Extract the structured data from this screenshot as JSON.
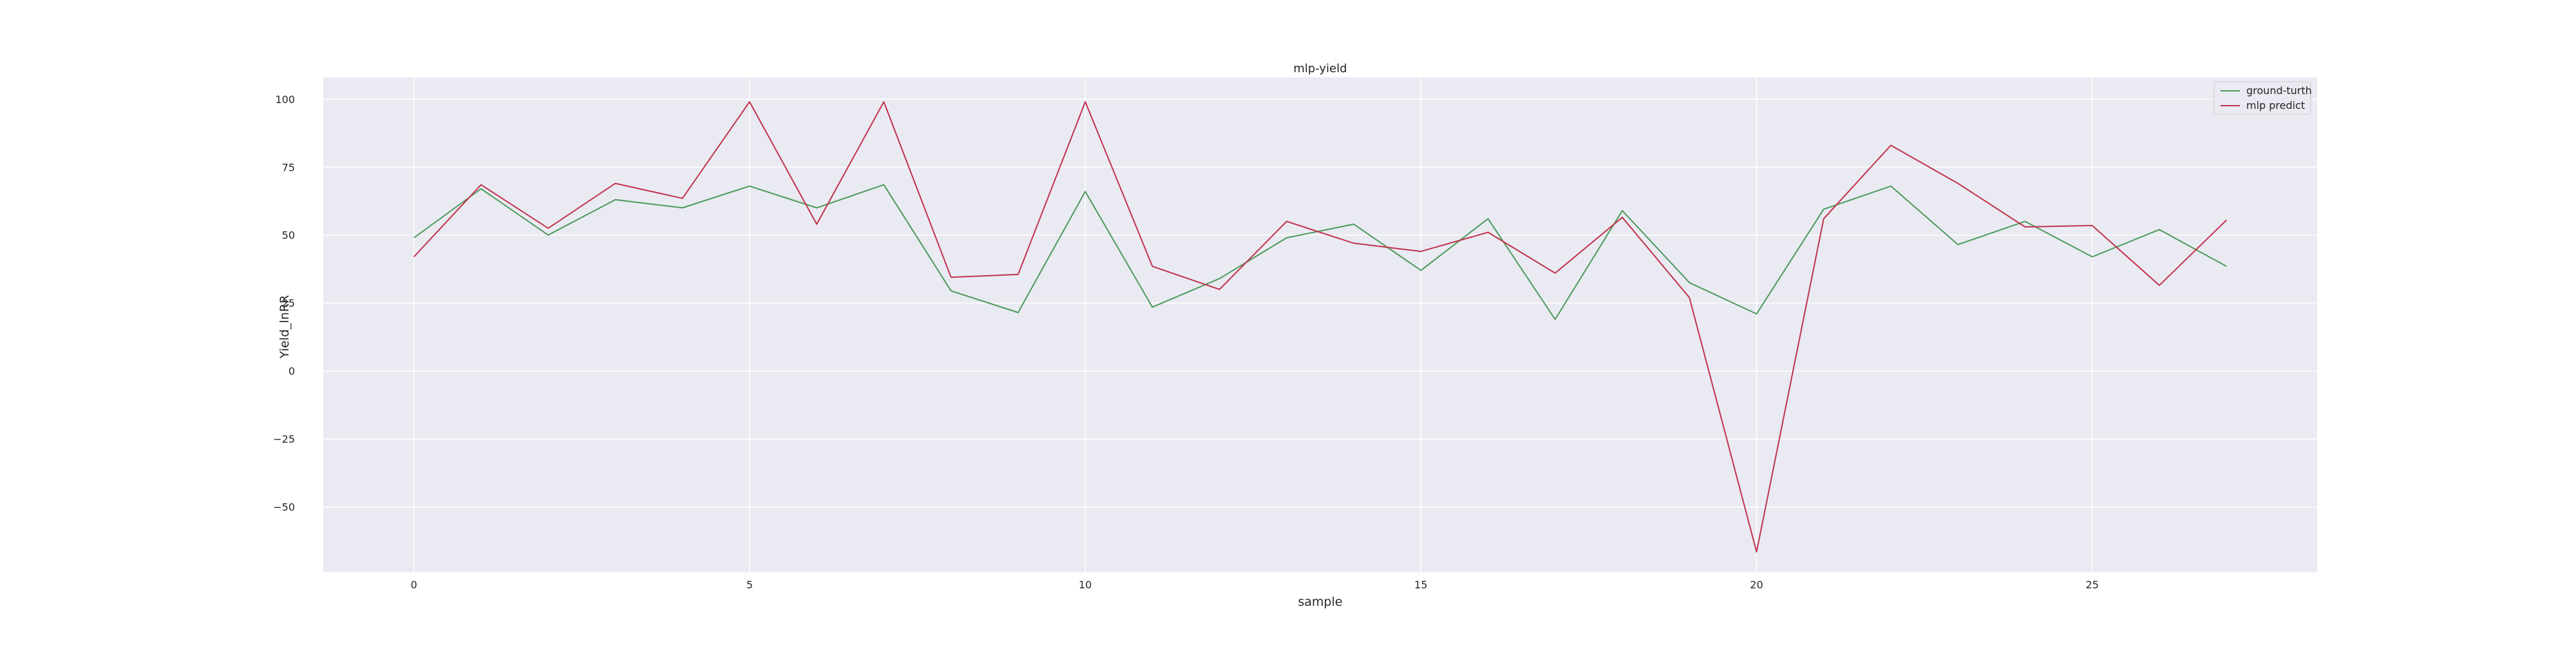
{
  "chart_data": {
    "type": "line",
    "title": "mlp-yield",
    "xlabel": "sample",
    "ylabel": "Yield_lnRR",
    "xlim": [
      -1.35,
      28.35
    ],
    "ylim": [
      -74,
      108
    ],
    "x_ticks": [
      0,
      5,
      10,
      15,
      20,
      25
    ],
    "x_tick_labels": [
      "0",
      "5",
      "10",
      "15",
      "20",
      "25"
    ],
    "y_ticks": [
      -50,
      -25,
      0,
      25,
      50,
      75,
      100
    ],
    "y_tick_labels": [
      "−50",
      "−25",
      "0",
      "25",
      "50",
      "75",
      "100"
    ],
    "grid": true,
    "legend_position": "top-right",
    "x": [
      0,
      1,
      2,
      3,
      4,
      5,
      6,
      7,
      8,
      9,
      10,
      11,
      12,
      13,
      14,
      15,
      16,
      17,
      18,
      19,
      20,
      21,
      22,
      23,
      24,
      25,
      26,
      27
    ],
    "series": [
      {
        "name": "ground-turth",
        "color": "#4c9a5c",
        "values": [
          49,
          67,
          50,
          63,
          60,
          68,
          60,
          68.5,
          29.5,
          21.5,
          66,
          23.5,
          34,
          49,
          54,
          37,
          56,
          19,
          59,
          32.5,
          21,
          59.5,
          68,
          46.5,
          55,
          42,
          52,
          38.5
        ]
      },
      {
        "name": "mlp predict",
        "color": "#c0334d",
        "values": [
          42,
          68.5,
          52.5,
          69,
          63.5,
          99,
          54,
          99,
          34.5,
          35.5,
          99,
          38.5,
          30,
          55,
          47,
          44,
          51,
          36,
          56.5,
          27,
          -66.5,
          56,
          83,
          69,
          53,
          53.5,
          31.5,
          55.5
        ]
      }
    ]
  }
}
